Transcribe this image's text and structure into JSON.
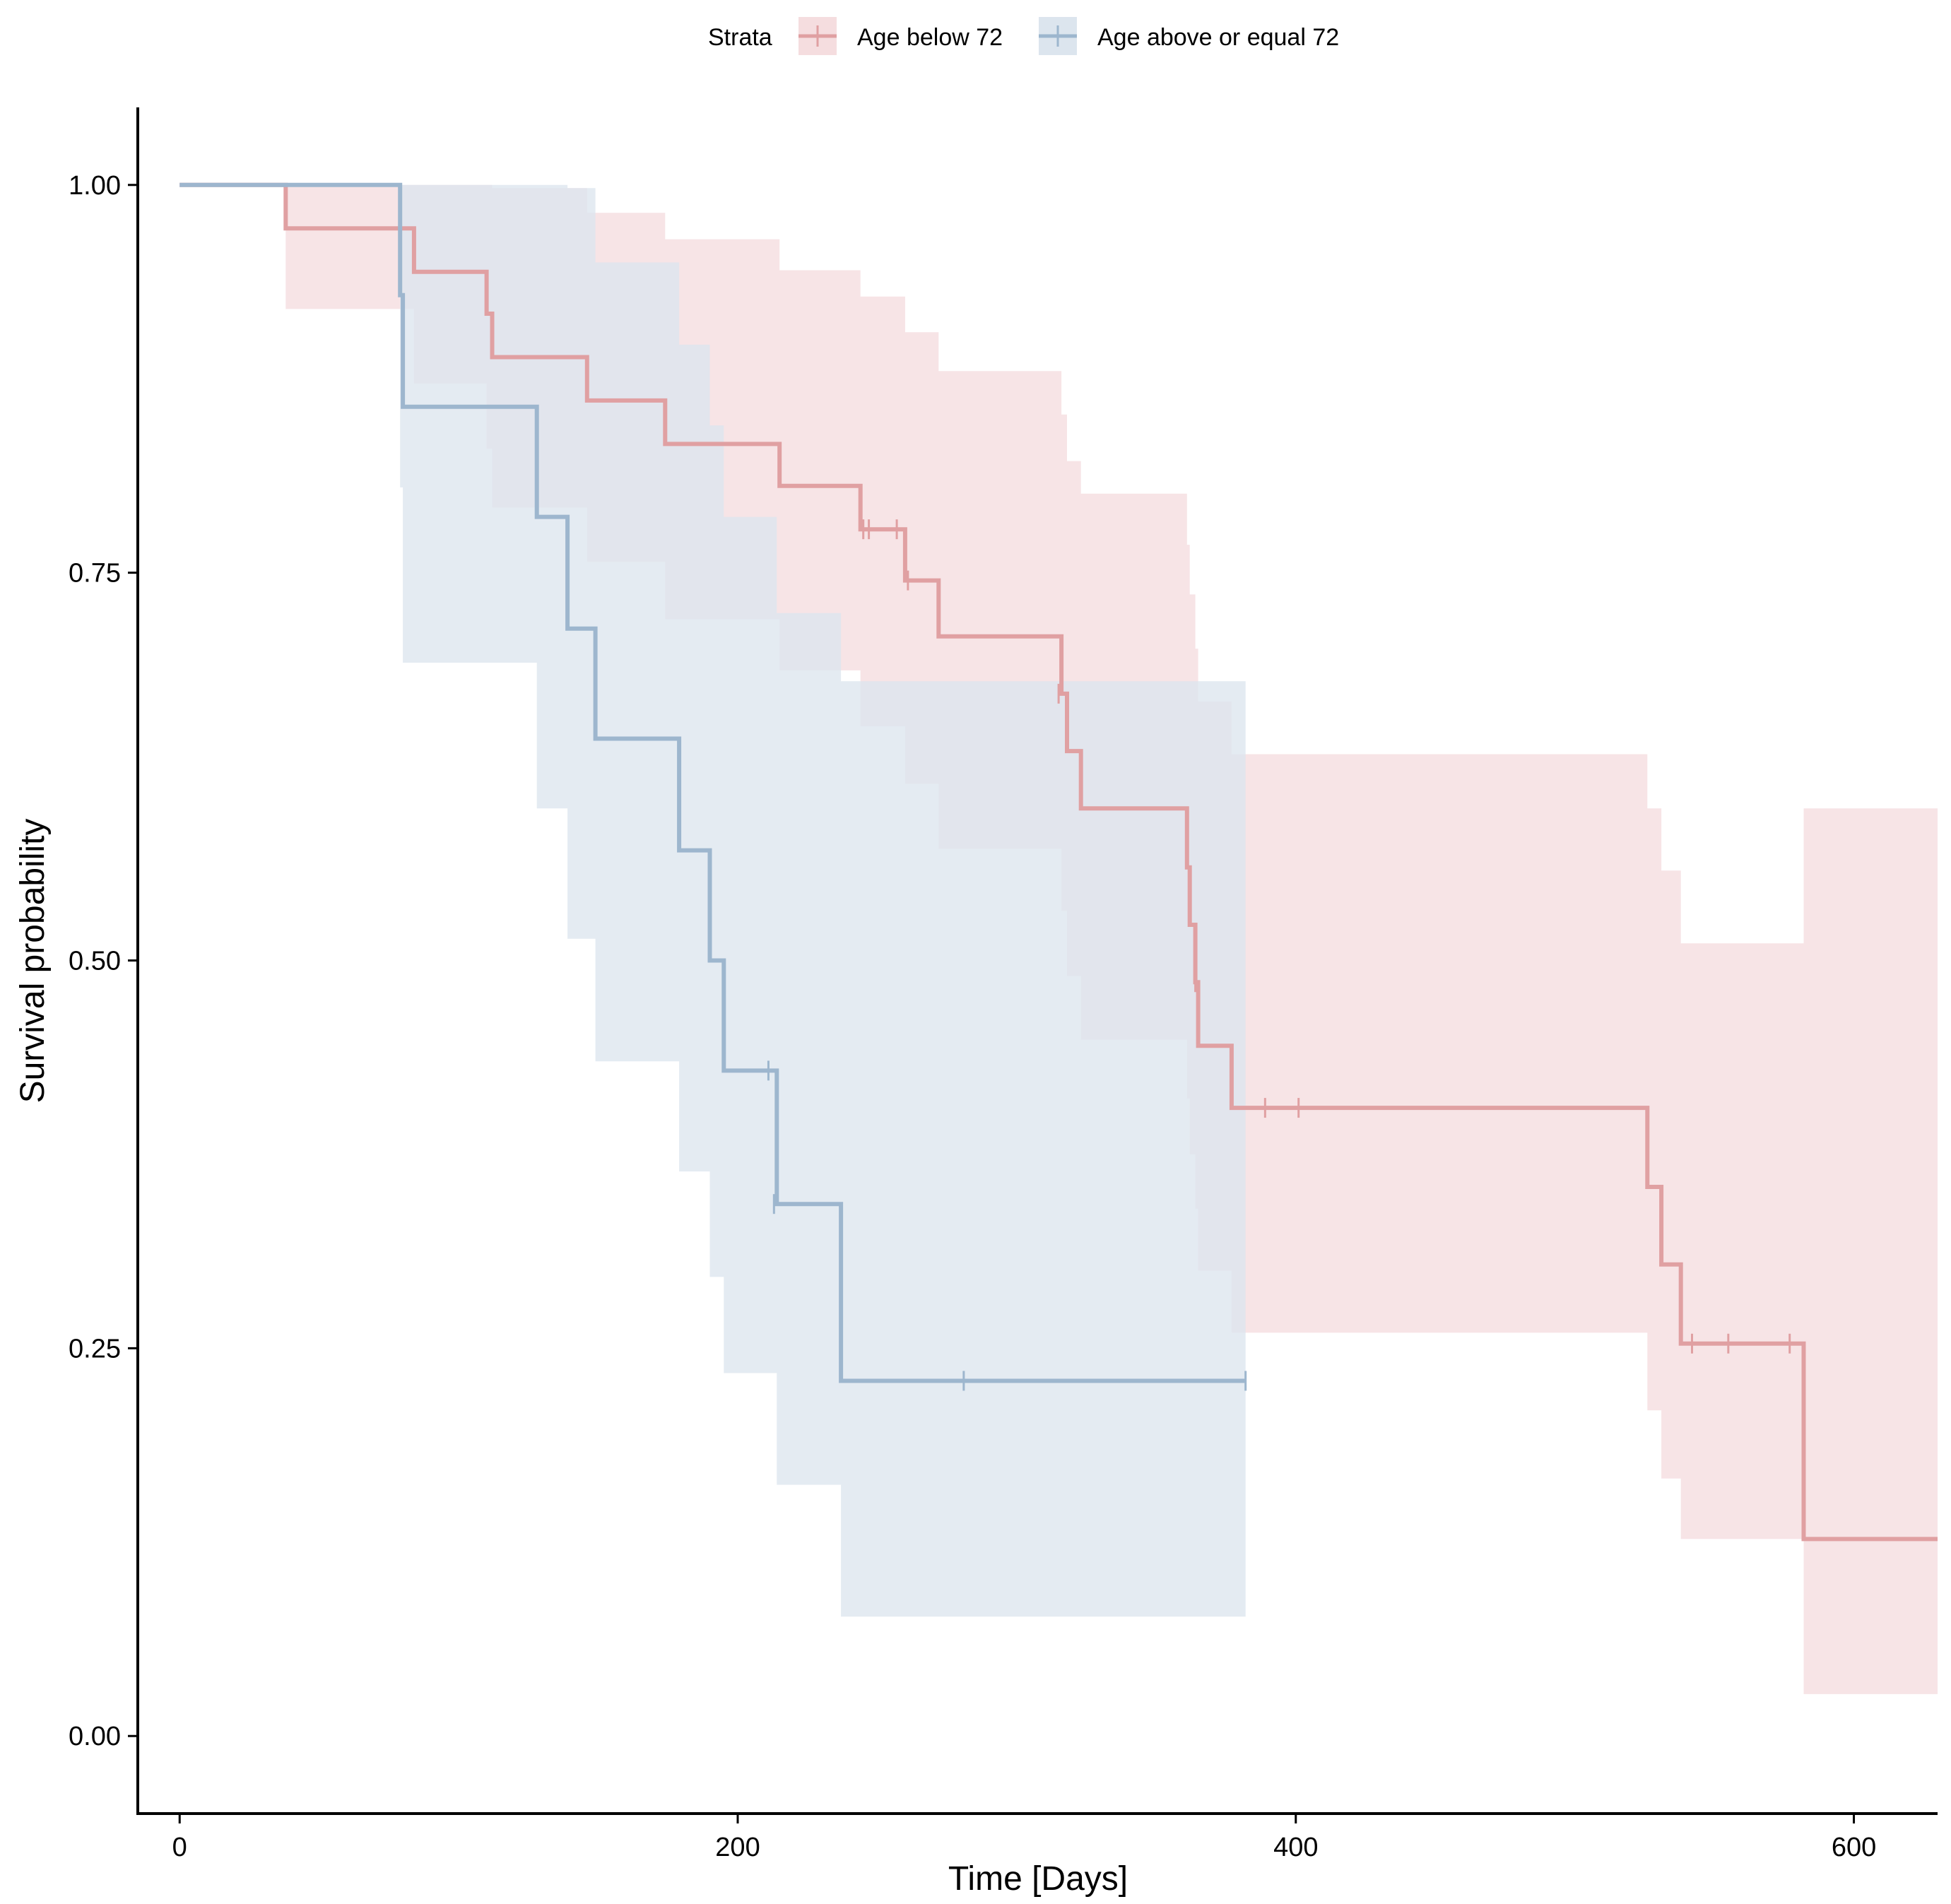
{
  "chart_data": {
    "type": "line",
    "subtype": "kaplan-meier",
    "title": "",
    "xlabel": "Time [Days]",
    "ylabel": "Survival probability",
    "xlim": [
      -15,
      630
    ],
    "ylim": [
      -0.05,
      1.05
    ],
    "xticks": [
      0,
      200,
      400,
      600
    ],
    "xtick_labels": [
      "0",
      "200",
      "400",
      "600"
    ],
    "yticks": [
      0,
      0.25,
      0.5,
      0.75,
      1
    ],
    "ytick_labels": [
      "0.00",
      "0.25",
      "0.50",
      "0.75",
      "1.00"
    ],
    "grid": false,
    "legend": {
      "title": "Strata",
      "position": "top"
    },
    "series": [
      {
        "name": "Age below 72",
        "color": "#E0A0A2",
        "band_color": "#F5DDDF",
        "steps": [
          {
            "t": 0,
            "s": 1.0,
            "lo": 1.0,
            "hi": 1.0
          },
          {
            "t": 38,
            "s": 0.972,
            "lo": 0.92,
            "hi": 1.0
          },
          {
            "t": 84,
            "s": 0.944,
            "lo": 0.872,
            "hi": 1.0
          },
          {
            "t": 110,
            "s": 0.917,
            "lo": 0.83,
            "hi": 1.0
          },
          {
            "t": 112,
            "s": 0.889,
            "lo": 0.792,
            "hi": 0.998
          },
          {
            "t": 146,
            "s": 0.861,
            "lo": 0.757,
            "hi": 0.982
          },
          {
            "t": 174,
            "s": 0.833,
            "lo": 0.72,
            "hi": 0.965
          },
          {
            "t": 215,
            "s": 0.806,
            "lo": 0.687,
            "hi": 0.945
          },
          {
            "t": 244,
            "s": 0.778,
            "lo": 0.651,
            "hi": 0.928
          },
          {
            "t": 260,
            "s": 0.745,
            "lo": 0.614,
            "hi": 0.905
          },
          {
            "t": 272,
            "s": 0.709,
            "lo": 0.572,
            "hi": 0.88
          },
          {
            "t": 316,
            "s": 0.672,
            "lo": 0.532,
            "hi": 0.852
          },
          {
            "t": 318,
            "s": 0.635,
            "lo": 0.49,
            "hi": 0.822
          },
          {
            "t": 323,
            "s": 0.598,
            "lo": 0.449,
            "hi": 0.801
          },
          {
            "t": 361,
            "s": 0.56,
            "lo": 0.411,
            "hi": 0.768
          },
          {
            "t": 362,
            "s": 0.523,
            "lo": 0.375,
            "hi": 0.736
          },
          {
            "t": 364,
            "s": 0.486,
            "lo": 0.34,
            "hi": 0.701
          },
          {
            "t": 365,
            "s": 0.445,
            "lo": 0.3,
            "hi": 0.667
          },
          {
            "t": 377,
            "s": 0.405,
            "lo": 0.26,
            "hi": 0.633
          },
          {
            "t": 526,
            "s": 0.354,
            "lo": 0.21,
            "hi": 0.598
          },
          {
            "t": 531,
            "s": 0.304,
            "lo": 0.166,
            "hi": 0.558
          },
          {
            "t": 538,
            "s": 0.253,
            "lo": 0.127,
            "hi": 0.511
          },
          {
            "t": 582,
            "s": 0.127,
            "lo": 0.027,
            "hi": 0.598
          }
        ],
        "end": 630,
        "censored": [
          {
            "t": 245,
            "s": 0.778
          },
          {
            "t": 247,
            "s": 0.778
          },
          {
            "t": 257,
            "s": 0.778
          },
          {
            "t": 261,
            "s": 0.745
          },
          {
            "t": 315,
            "s": 0.672
          },
          {
            "t": 364,
            "s": 0.486
          },
          {
            "t": 389,
            "s": 0.405
          },
          {
            "t": 401,
            "s": 0.405
          },
          {
            "t": 542,
            "s": 0.253
          },
          {
            "t": 555,
            "s": 0.253
          },
          {
            "t": 577,
            "s": 0.253
          }
        ]
      },
      {
        "name": "Age above or equal 72",
        "color": "#9DB6CE",
        "band_color": "#DCE5EE",
        "steps": [
          {
            "t": 0,
            "s": 1.0,
            "lo": 1.0,
            "hi": 1.0
          },
          {
            "t": 79,
            "s": 0.929,
            "lo": 0.805,
            "hi": 1.0
          },
          {
            "t": 80,
            "s": 0.857,
            "lo": 0.692,
            "hi": 1.0
          },
          {
            "t": 128,
            "s": 0.786,
            "lo": 0.598,
            "hi": 1.0
          },
          {
            "t": 139,
            "s": 0.714,
            "lo": 0.514,
            "hi": 0.998
          },
          {
            "t": 149,
            "s": 0.643,
            "lo": 0.435,
            "hi": 0.95
          },
          {
            "t": 179,
            "s": 0.571,
            "lo": 0.364,
            "hi": 0.897
          },
          {
            "t": 190,
            "s": 0.5,
            "lo": 0.296,
            "hi": 0.845
          },
          {
            "t": 195,
            "s": 0.429,
            "lo": 0.234,
            "hi": 0.786
          },
          {
            "t": 214,
            "s": 0.343,
            "lo": 0.162,
            "hi": 0.724
          },
          {
            "t": 237,
            "s": 0.229,
            "lo": 0.077,
            "hi": 0.68
          }
        ],
        "end": 382,
        "censored": [
          {
            "t": 211,
            "s": 0.429
          },
          {
            "t": 213,
            "s": 0.343
          },
          {
            "t": 281,
            "s": 0.229
          },
          {
            "t": 382,
            "s": 0.229
          }
        ]
      }
    ]
  }
}
